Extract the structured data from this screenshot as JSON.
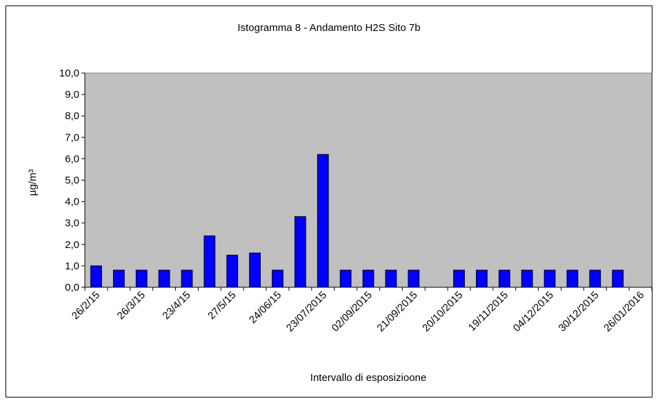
{
  "chart_data": {
    "type": "bar",
    "title": "Istogramma 8 - Andamento H2S Sito 7b",
    "x_label": "Intervallo di esposizioone",
    "y_label": "µg/m³",
    "categories": [
      "26/2/15",
      null,
      "26/3/15",
      null,
      "23/4/15",
      null,
      "27/5/15",
      null,
      "24/06/15",
      null,
      "23/07/2015",
      null,
      "02/09/2015",
      null,
      "21/09/2015",
      null,
      "20/10/2015",
      null,
      "19/11/2015",
      null,
      "04/12/2015",
      null,
      "30/12/2015",
      null,
      "26/01/2016"
    ],
    "values": [
      1.0,
      0.8,
      0.8,
      0.8,
      0.8,
      2.4,
      1.5,
      1.6,
      0.8,
      3.3,
      6.2,
      0.8,
      0.8,
      0.8,
      0.8,
      null,
      0.8,
      0.8,
      0.8,
      0.8,
      0.8,
      0.8,
      0.8,
      0.8,
      null
    ],
    "color": "#0000ff",
    "ylim": [
      0,
      10
    ],
    "yticks": [
      {
        "value": 0,
        "label": "0,0"
      },
      {
        "value": 1,
        "label": "1,0"
      },
      {
        "value": 2,
        "label": "2,0"
      },
      {
        "value": 3,
        "label": "3,0"
      },
      {
        "value": 4,
        "label": "4,0"
      },
      {
        "value": 5,
        "label": "5,0"
      },
      {
        "value": 6,
        "label": "6,0"
      },
      {
        "value": 7,
        "label": "7,0"
      },
      {
        "value": 8,
        "label": "8,0"
      },
      {
        "value": 9,
        "label": "9,0"
      },
      {
        "value": 10,
        "label": "10,0"
      }
    ]
  }
}
